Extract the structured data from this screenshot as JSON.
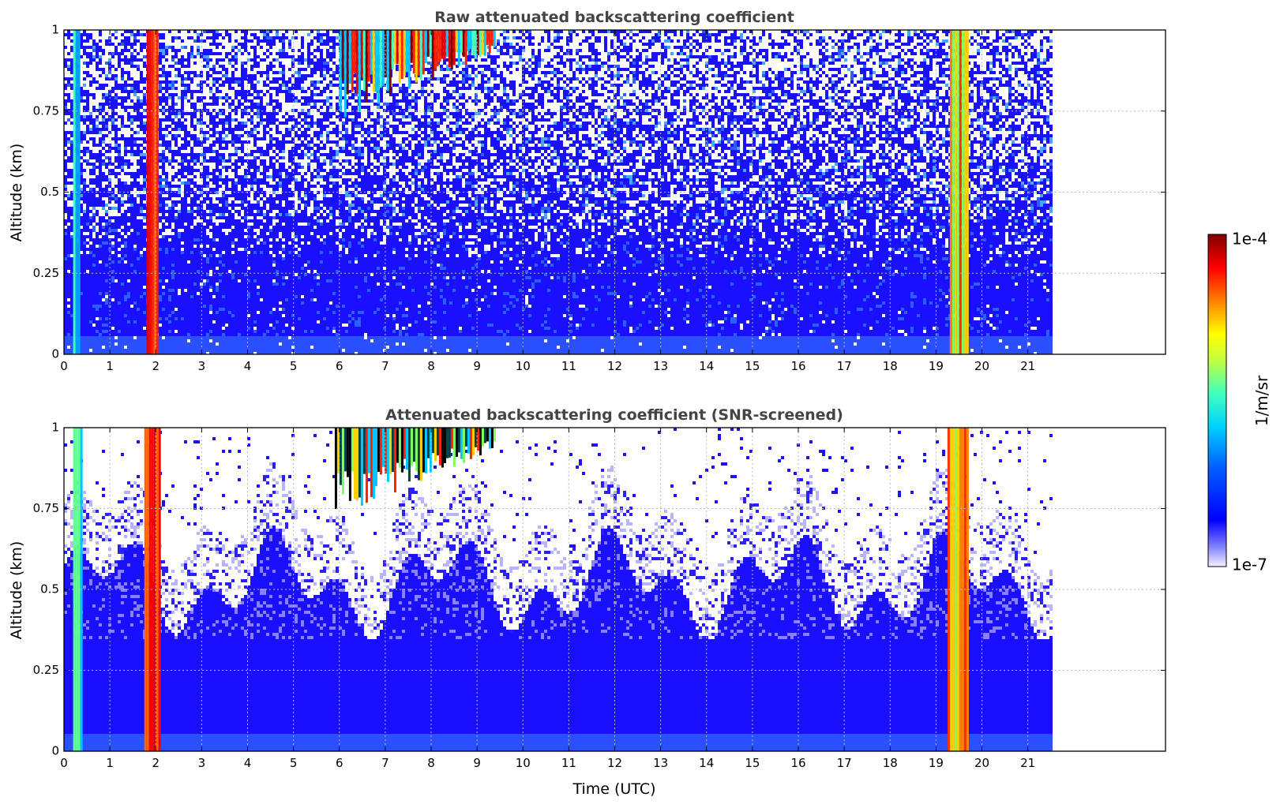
{
  "chart_data": [
    {
      "type": "heatmap",
      "title": "Raw attenuated backscattering coefficient",
      "xlabel": "",
      "ylabel": "Altitude (km)",
      "xlim": [
        0,
        24
      ],
      "ylim": [
        0,
        1
      ],
      "xticks": [
        0,
        1,
        2,
        3,
        4,
        5,
        6,
        7,
        8,
        9,
        10,
        11,
        12,
        13,
        14,
        15,
        16,
        17,
        18,
        19,
        20,
        21
      ],
      "yticks": [
        0,
        0.25,
        0.5,
        0.75,
        1
      ],
      "ytick_labels": [
        "0",
        "0.25",
        "0.5",
        "0.75",
        "1"
      ],
      "grid": true,
      "data_end_time": 21.5,
      "screened": false,
      "features": [
        {
          "kind": "cloud_column",
          "time_start": 0.2,
          "time_end": 0.35,
          "level": "cyan-green"
        },
        {
          "kind": "cloud_column",
          "time_start": 1.8,
          "time_end": 2.05,
          "level": "red"
        },
        {
          "kind": "cloud_column",
          "time_start": 19.3,
          "time_end": 19.7,
          "level": "red-yellow"
        },
        {
          "kind": "high_signal_cloud",
          "time_start": 6.0,
          "time_end": 9.4,
          "altitude_min": 0.72,
          "altitude_max": 1.0
        }
      ]
    },
    {
      "type": "heatmap",
      "title": "Attenuated backscattering coefficient (SNR-screened)",
      "xlabel": "Time (UTC)",
      "ylabel": "Altitude (km)",
      "xlim": [
        0,
        24
      ],
      "ylim": [
        0,
        1
      ],
      "xticks": [
        0,
        1,
        2,
        3,
        4,
        5,
        6,
        7,
        8,
        9,
        10,
        11,
        12,
        13,
        14,
        15,
        16,
        17,
        18,
        19,
        20,
        21
      ],
      "yticks": [
        0,
        0.25,
        0.5,
        0.75,
        1
      ],
      "ytick_labels": [
        "0",
        "0.25",
        "0.5",
        "0.75",
        "1"
      ],
      "grid": true,
      "data_end_time": 21.5,
      "screened": true,
      "features": [
        {
          "kind": "cloud_column",
          "time_start": 0.2,
          "time_end": 0.4,
          "level": "cyan-green"
        },
        {
          "kind": "cloud_column",
          "time_start": 1.75,
          "time_end": 2.1,
          "level": "red"
        },
        {
          "kind": "cloud_column",
          "time_start": 19.25,
          "time_end": 19.7,
          "level": "red-yellow"
        },
        {
          "kind": "high_signal_cloud",
          "time_start": 5.9,
          "time_end": 9.4,
          "altitude_min": 0.72,
          "altitude_max": 1.0
        }
      ]
    }
  ],
  "colorbar": {
    "label": "1/m/sr",
    "max_label": "1e-4",
    "min_label": "1e-7",
    "scale": "log",
    "range": [
      1e-07,
      0.0001
    ],
    "colormap": "jet",
    "colors": [
      "#f2f2ff",
      "#0000ff",
      "#00c8ff",
      "#40ffbf",
      "#ffff00",
      "#ff8000",
      "#ff0000",
      "#800000"
    ]
  }
}
